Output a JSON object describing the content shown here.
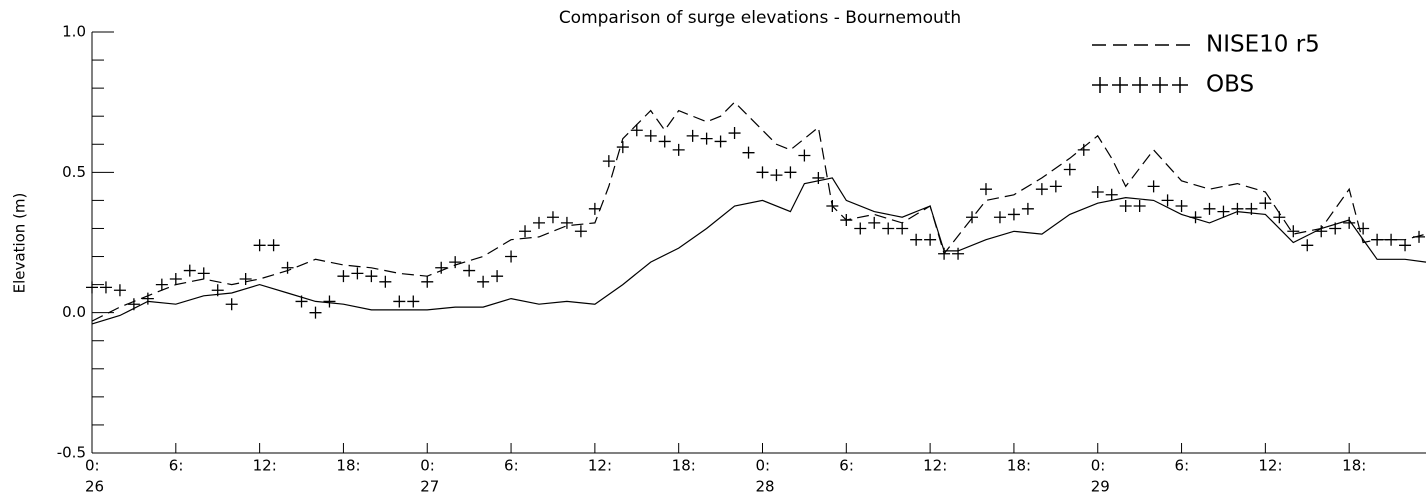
{
  "chart_data": {
    "type": "line",
    "title": "Comparison of surge elevations - Bournemouth",
    "ylabel": "Elevation (m)",
    "xlim": [
      0,
      95.5
    ],
    "ylim": [
      -0.5,
      1.0
    ],
    "yticks": [
      -0.5,
      {
        "value": 0,
        "label": "0.0"
      },
      0.5,
      {
        "value": 1,
        "label": "1.0"
      }
    ],
    "yminorticks": [
      -0.4,
      -0.3,
      -0.2,
      -0.1,
      0.1,
      0.2,
      0.3,
      0.4,
      0.6,
      0.7,
      0.8,
      0.9
    ],
    "xticks": [
      {
        "value": 0,
        "label": "0:"
      },
      {
        "value": 6,
        "label": "6:"
      },
      {
        "value": 12,
        "label": "12:"
      },
      {
        "value": 18,
        "label": "18:"
      },
      {
        "value": 24,
        "label": "0:"
      },
      {
        "value": 30,
        "label": "6:"
      },
      {
        "value": 36,
        "label": "12:"
      },
      {
        "value": 42,
        "label": "18:"
      },
      {
        "value": 48,
        "label": "0:"
      },
      {
        "value": 54,
        "label": "6:"
      },
      {
        "value": 60,
        "label": "12:"
      },
      {
        "value": 66,
        "label": "18:"
      },
      {
        "value": 72,
        "label": "0:"
      },
      {
        "value": 78,
        "label": "6:"
      },
      {
        "value": 84,
        "label": "12:"
      },
      {
        "value": 90,
        "label": "18:"
      }
    ],
    "xday_labels": [
      {
        "value": 0,
        "label": "26"
      },
      {
        "value": 24,
        "label": "27"
      },
      {
        "value": 48,
        "label": "28"
      },
      {
        "value": 72,
        "label": "29"
      }
    ],
    "series": [
      {
        "name": "NISE10 r5",
        "color": "#000000",
        "style": "dashed",
        "x": [
          0,
          2,
          4,
          6,
          8,
          10,
          12,
          14,
          16,
          18,
          20,
          22,
          24,
          26,
          28,
          30,
          32,
          34,
          36,
          37,
          38,
          40,
          41,
          42,
          44,
          45,
          46,
          48,
          49,
          50,
          52,
          53,
          54,
          56,
          58,
          60,
          61,
          64,
          66,
          68,
          70,
          72,
          73,
          74,
          76,
          78,
          80,
          82,
          84,
          86,
          88,
          90,
          91,
          92,
          94,
          95.5
        ],
        "values": [
          -0.03,
          0.02,
          0.06,
          0.1,
          0.12,
          0.1,
          0.12,
          0.15,
          0.19,
          0.17,
          0.16,
          0.14,
          0.13,
          0.17,
          0.2,
          0.26,
          0.27,
          0.31,
          0.32,
          0.45,
          0.62,
          0.72,
          0.65,
          0.72,
          0.68,
          0.7,
          0.75,
          0.65,
          0.6,
          0.58,
          0.66,
          0.38,
          0.33,
          0.35,
          0.32,
          0.38,
          0.21,
          0.4,
          0.42,
          0.48,
          0.55,
          0.63,
          0.55,
          0.45,
          0.58,
          0.47,
          0.44,
          0.46,
          0.43,
          0.28,
          0.3,
          0.44,
          0.25,
          0.26,
          0.26,
          0.28
        ]
      },
      {
        "name": "OBS",
        "color": "#000000",
        "style": "markers",
        "x": [
          0,
          1,
          2,
          3,
          4,
          5,
          6,
          7,
          8,
          9,
          10,
          11,
          12,
          13,
          14,
          15,
          16,
          17,
          18,
          19,
          20,
          21,
          22,
          23,
          24,
          25,
          26,
          27,
          28,
          29,
          30,
          31,
          32,
          33,
          34,
          35,
          36,
          37,
          38,
          39,
          40,
          41,
          42,
          43,
          44,
          45,
          46,
          47,
          48,
          49,
          50,
          51,
          52,
          53,
          54,
          55,
          56,
          57,
          58,
          59,
          60,
          61,
          62,
          63,
          64,
          65,
          66,
          67,
          68,
          69,
          70,
          71,
          72,
          73,
          74,
          75,
          76,
          77,
          78,
          79,
          80,
          81,
          82,
          83,
          84,
          85,
          86,
          87,
          88,
          89,
          90,
          91,
          92,
          93,
          94,
          95
        ],
        "values": [
          0.09,
          0.09,
          0.08,
          0.03,
          0.05,
          0.1,
          0.12,
          0.15,
          0.14,
          0.08,
          0.03,
          0.12,
          0.24,
          0.24,
          0.16,
          0.04,
          0.0,
          0.04,
          0.13,
          0.14,
          0.13,
          0.11,
          0.04,
          0.04,
          0.11,
          0.16,
          0.18,
          0.15,
          0.11,
          0.13,
          0.2,
          0.29,
          0.32,
          0.34,
          0.32,
          0.29,
          0.37,
          0.54,
          0.59,
          0.65,
          0.63,
          0.61,
          0.58,
          0.63,
          0.62,
          0.61,
          0.64,
          0.57,
          0.5,
          0.49,
          0.5,
          0.56,
          0.48,
          0.38,
          0.33,
          0.3,
          0.32,
          0.3,
          0.3,
          0.26,
          0.26,
          0.21,
          0.21,
          0.34,
          0.44,
          0.34,
          0.35,
          0.37,
          0.44,
          0.45,
          0.51,
          0.58,
          0.43,
          0.42,
          0.38,
          0.38,
          0.45,
          0.4,
          0.38,
          0.34,
          0.37,
          0.36,
          0.37,
          0.37,
          0.39,
          0.34,
          0.29,
          0.24,
          0.29,
          0.3,
          0.32,
          0.3,
          0.26,
          0.26,
          0.24,
          0.27
        ]
      },
      {
        "color": "#000000",
        "style": "solid",
        "x": [
          0,
          2,
          4,
          6,
          8,
          10,
          12,
          14,
          16,
          18,
          20,
          22,
          24,
          26,
          28,
          30,
          32,
          34,
          36,
          38,
          40,
          42,
          44,
          46,
          48,
          50,
          51,
          53,
          54,
          56,
          58,
          60,
          61,
          62,
          64,
          66,
          68,
          70,
          72,
          74,
          76,
          78,
          80,
          82,
          84,
          86,
          88,
          90,
          92,
          94,
          95.5
        ],
        "values": [
          -0.04,
          -0.01,
          0.04,
          0.03,
          0.06,
          0.07,
          0.1,
          0.07,
          0.04,
          0.03,
          0.01,
          0.01,
          0.01,
          0.02,
          0.02,
          0.05,
          0.03,
          0.04,
          0.03,
          0.1,
          0.18,
          0.23,
          0.3,
          0.38,
          0.4,
          0.36,
          0.46,
          0.48,
          0.4,
          0.36,
          0.34,
          0.38,
          0.22,
          0.22,
          0.26,
          0.29,
          0.28,
          0.35,
          0.39,
          0.41,
          0.4,
          0.35,
          0.32,
          0.36,
          0.35,
          0.25,
          0.3,
          0.33,
          0.19,
          0.19,
          0.18
        ]
      }
    ]
  }
}
